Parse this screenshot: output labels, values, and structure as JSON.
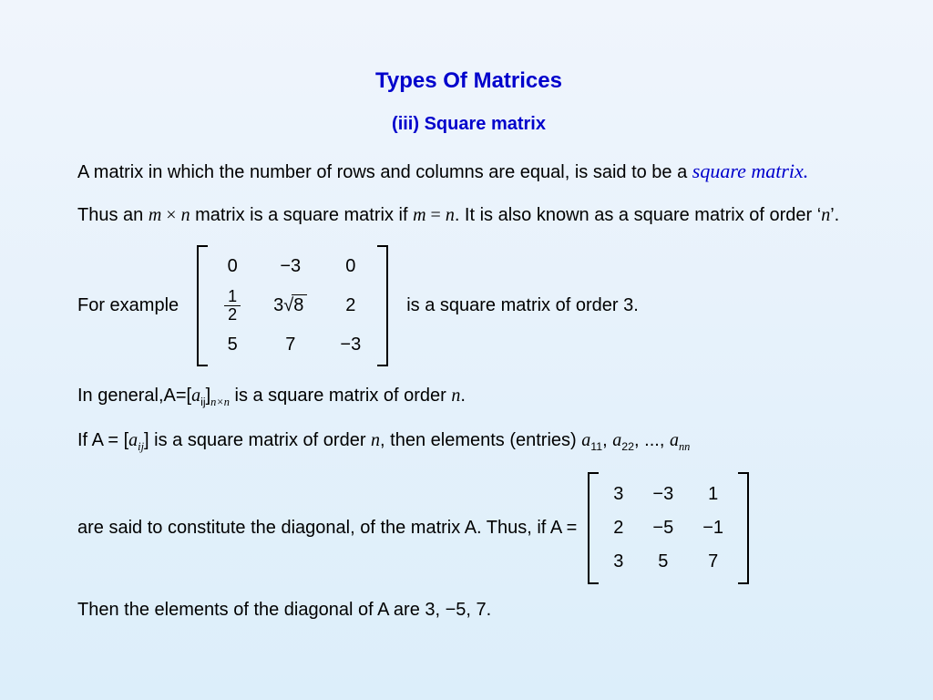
{
  "colors": {
    "title_color": "#0000cc",
    "body_text": "#000000",
    "bg_gradient_top": "#f0f5fc",
    "bg_gradient_bottom": "#dceefa"
  },
  "typography": {
    "title_fontsize": 24,
    "subtitle_fontsize": 20,
    "body_fontsize": 20,
    "font_family_heading": "Trebuchet MS",
    "font_family_math": "Times New Roman"
  },
  "title": "Types Of Matrices",
  "subtitle": "(iii) Square matrix",
  "p1_a": "A matrix in which the number of rows and columns are equal, is said to be a ",
  "p1_term": "square matrix.",
  "p2_a": "Thus an ",
  "p2_m": "m",
  "p2_times": " × ",
  "p2_n": "n",
  "p2_b": " matrix is a square matrix if ",
  "p2_m2": "m",
  "p2_eq": " = ",
  "p2_n2": "n",
  "p2_c": ". It is also known as a square matrix of order ‘",
  "p2_n3": "n",
  "p2_d": "’.",
  "example_lead": "For example",
  "example_tail": "is a square matrix of order 3.",
  "matrix1": {
    "type": "matrix",
    "order": 3,
    "rows": [
      [
        "0",
        "−3",
        "0"
      ],
      [
        "1/2",
        "3√8",
        "2"
      ],
      [
        "5",
        "7",
        "−3"
      ]
    ],
    "cell_padding": "6px 18px",
    "bracket_color": "#000000"
  },
  "p3_a": "In general,A=[",
  "p3_a_elem": "a",
  "p3_a_ij": "ij",
  "p3_b": "]",
  "p3_sub": "n×n",
  "p3_c": " is a square matrix of order ",
  "p3_n": "n",
  "p3_d": ".",
  "p4_a": "If A = [",
  "p4_a_elem": "a",
  "p4_a_ij": "ij",
  "p4_b": "] is a square matrix of order ",
  "p4_n": "n",
  "p4_c": ", then elements (entries) ",
  "p4_e1a": "a",
  "p4_e1s": "11",
  "p4_com1": ", ",
  "p4_e2a": "a",
  "p4_e2s": "22",
  "p4_com2": ", ..., ",
  "p4_ena": "a",
  "p4_ens": "nn",
  "p5_a": "are said to constitute the diagonal, of the matrix A. Thus, if  A = ",
  "matrix2": {
    "type": "matrix",
    "order": 3,
    "rows": [
      [
        "3",
        "−3",
        "1"
      ],
      [
        "2",
        "−5",
        "−1"
      ],
      [
        "3",
        "5",
        "7"
      ]
    ],
    "cell_padding": "4px 16px",
    "bracket_color": "#000000"
  },
  "p6": "Then the elements of the diagonal of A are 3, −5, 7."
}
